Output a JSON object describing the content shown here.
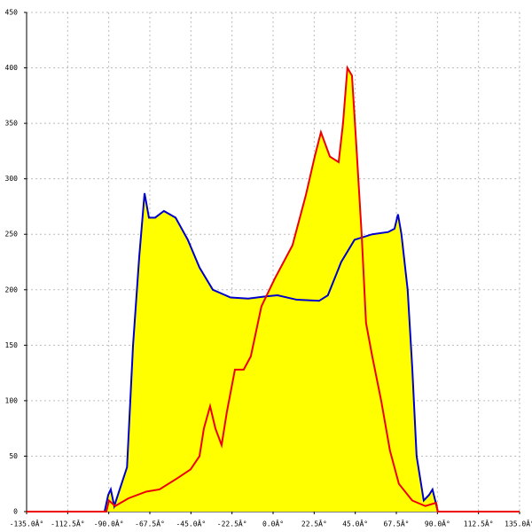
{
  "chart_data": {
    "type": "area",
    "xlim": [
      -135,
      135
    ],
    "ylim": [
      0,
      450
    ],
    "xticks": [
      {
        "value": -135,
        "label": "-135.0Â°"
      },
      {
        "value": -112.5,
        "label": "-112.5Â°"
      },
      {
        "value": -90,
        "label": "-90.0Â°"
      },
      {
        "value": -67.5,
        "label": "-67.5Â°"
      },
      {
        "value": -45,
        "label": "-45.0Â°"
      },
      {
        "value": -22.5,
        "label": "-22.5Â°"
      },
      {
        "value": 0,
        "label": "0.0Â°"
      },
      {
        "value": 22.5,
        "label": "22.5Â°"
      },
      {
        "value": 45,
        "label": "45.0Â°"
      },
      {
        "value": 67.5,
        "label": "67.5Â°"
      },
      {
        "value": 90,
        "label": "90.0Â°"
      },
      {
        "value": 112.5,
        "label": "112.5Â°"
      },
      {
        "value": 135,
        "label": "135.0Â°"
      }
    ],
    "yticks": [
      0,
      50,
      100,
      150,
      200,
      250,
      300,
      350,
      400,
      450
    ],
    "grid": true,
    "fill": "#ffff00",
    "series": [
      {
        "color": "#0000cc",
        "x": [
          -92.3,
          -90.3,
          -88.9,
          -87,
          -84,
          -80,
          -76.7,
          -73.3,
          -70.4,
          -68,
          -64.6,
          -59.8,
          -53.4,
          -46.7,
          -40.3,
          -33,
          -23.3,
          -13.6,
          -3.9,
          2.4,
          13,
          25.2,
          30,
          37.3,
          44.6,
          54.3,
          63,
          66.5,
          68.4,
          70.3,
          73.7,
          76.2,
          78.6,
          82.5,
          85.4,
          87.3,
          88.8,
          90.2
        ],
        "values": [
          0,
          15,
          20,
          5,
          20,
          40,
          150,
          230,
          287,
          265,
          265,
          271,
          265,
          245,
          220,
          200,
          193,
          192,
          194,
          195,
          191,
          190,
          195,
          225,
          245,
          250,
          252,
          255,
          268,
          250,
          200,
          130,
          50,
          10,
          15,
          20,
          10,
          0
        ]
      },
      {
        "color": "#ee0000",
        "x": [
          -135,
          -91.3,
          -89.9,
          -86.5,
          -79.2,
          -69.5,
          -62.2,
          -52.5,
          -45.2,
          -40.3,
          -37.9,
          -34.5,
          -31.6,
          -28.2,
          -25.3,
          -20.9,
          -16.1,
          -12.2,
          -6.4,
          0.9,
          10.6,
          17.9,
          22.8,
          26.2,
          31.1,
          35.9,
          38.3,
          40.7,
          43.2,
          45.6,
          48.5,
          50.9,
          54.3,
          59.2,
          64,
          68.9,
          76.2,
          83.4,
          89.3,
          90.2,
          135
        ],
        "values": [
          0,
          0,
          10,
          5,
          12,
          18,
          20,
          30,
          38,
          50,
          75,
          95,
          75,
          60,
          90,
          128,
          128,
          140,
          185,
          210,
          240,
          285,
          320,
          342,
          320,
          315,
          350,
          400,
          393,
          330,
          250,
          170,
          140,
          100,
          55,
          25,
          10,
          5,
          8,
          0,
          0
        ]
      }
    ]
  }
}
